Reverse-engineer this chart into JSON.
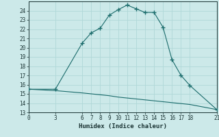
{
  "xlabel": "Humidex (Indice chaleur)",
  "ylabel": "",
  "bg_color": "#cce9e9",
  "grid_color": "#b0d8d8",
  "line_color": "#1a6b6b",
  "upper_x": [
    0,
    3,
    6,
    7,
    8,
    9,
    10,
    11,
    12,
    13,
    14,
    15,
    16,
    17,
    18,
    21
  ],
  "upper_y": [
    15.5,
    15.5,
    20.5,
    21.6,
    22.1,
    23.5,
    24.1,
    24.6,
    24.2,
    23.8,
    23.8,
    22.2,
    18.7,
    17.0,
    15.9,
    13.3
  ],
  "lower_x": [
    0,
    3,
    6,
    7,
    8,
    9,
    10,
    11,
    12,
    13,
    14,
    15,
    16,
    17,
    18,
    21
  ],
  "lower_y": [
    15.5,
    15.35,
    15.1,
    15.0,
    14.9,
    14.8,
    14.65,
    14.55,
    14.45,
    14.35,
    14.25,
    14.15,
    14.05,
    13.95,
    13.85,
    13.3
  ],
  "ylim": [
    13,
    25
  ],
  "xlim": [
    0,
    21
  ],
  "yticks": [
    13,
    14,
    15,
    16,
    17,
    18,
    19,
    20,
    21,
    22,
    23,
    24
  ],
  "xticks": [
    0,
    3,
    6,
    7,
    8,
    9,
    10,
    11,
    12,
    13,
    14,
    15,
    16,
    17,
    18,
    21
  ],
  "fontsize_tick": 5.5,
  "fontsize_label": 6.5
}
